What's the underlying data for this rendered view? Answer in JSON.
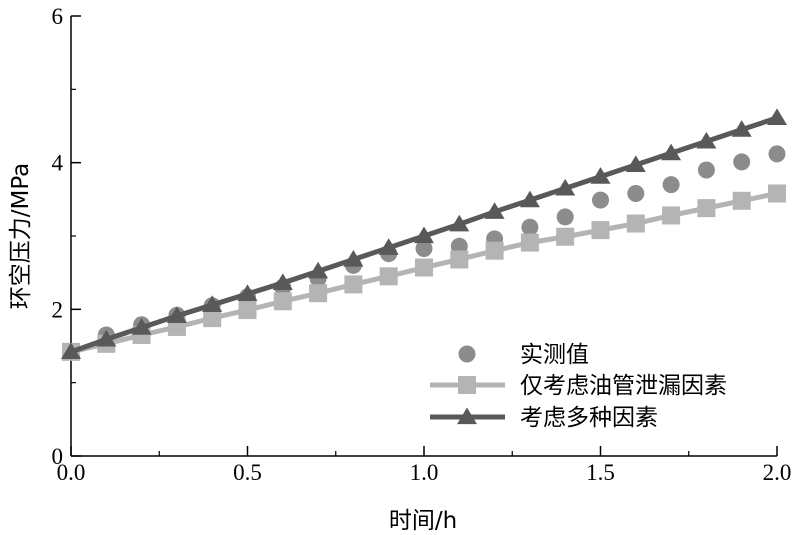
{
  "chart_data": {
    "type": "line",
    "xlabel": "时间/h",
    "ylabel": "环空压力/MPa",
    "xlim": [
      0,
      2.0
    ],
    "ylim": [
      0,
      6
    ],
    "xticks": [
      "0.0",
      "0.5",
      "1.0",
      "1.5",
      "2.0"
    ],
    "yticks": [
      "0",
      "2",
      "4",
      "6"
    ],
    "grid": false,
    "legend_position": "bottom-right",
    "series": [
      {
        "name": "实测值",
        "style": "markers",
        "marker": "circle",
        "color": "#8c8c8c",
        "x": [
          0.0,
          0.1,
          0.2,
          0.3,
          0.4,
          0.5,
          0.6,
          0.7,
          0.8,
          0.9,
          1.0,
          1.1,
          1.2,
          1.3,
          1.4,
          1.5,
          1.6,
          1.7,
          1.8,
          1.9,
          2.0
        ],
        "y": [
          1.42,
          1.65,
          1.79,
          1.92,
          2.05,
          2.17,
          2.3,
          2.42,
          2.6,
          2.76,
          2.83,
          2.86,
          2.96,
          3.12,
          3.26,
          3.49,
          3.58,
          3.7,
          3.9,
          4.01,
          4.12
        ]
      },
      {
        "name": "仅考虑油管泄漏因素",
        "style": "line-markers",
        "marker": "square",
        "color": "#b4b4b4",
        "x": [
          0.0,
          0.1,
          0.2,
          0.3,
          0.4,
          0.5,
          0.6,
          0.7,
          0.8,
          0.9,
          1.0,
          1.1,
          1.2,
          1.3,
          1.4,
          1.5,
          1.6,
          1.7,
          1.8,
          1.9,
          2.0
        ],
        "y": [
          1.42,
          1.53,
          1.65,
          1.76,
          1.88,
          1.99,
          2.11,
          2.22,
          2.34,
          2.45,
          2.57,
          2.68,
          2.8,
          2.91,
          2.99,
          3.08,
          3.17,
          3.28,
          3.38,
          3.48,
          3.58
        ]
      },
      {
        "name": "考虑多种因素",
        "style": "line-markers",
        "marker": "triangle",
        "color": "#595959",
        "x": [
          0.0,
          0.1,
          0.2,
          0.3,
          0.4,
          0.5,
          0.6,
          0.7,
          0.8,
          0.9,
          1.0,
          1.1,
          1.2,
          1.3,
          1.4,
          1.5,
          1.6,
          1.7,
          1.8,
          1.9,
          2.0
        ],
        "y": [
          1.42,
          1.59,
          1.75,
          1.91,
          2.06,
          2.21,
          2.36,
          2.52,
          2.68,
          2.84,
          3.0,
          3.16,
          3.33,
          3.49,
          3.65,
          3.81,
          3.97,
          4.13,
          4.29,
          4.45,
          4.61
        ]
      }
    ]
  }
}
